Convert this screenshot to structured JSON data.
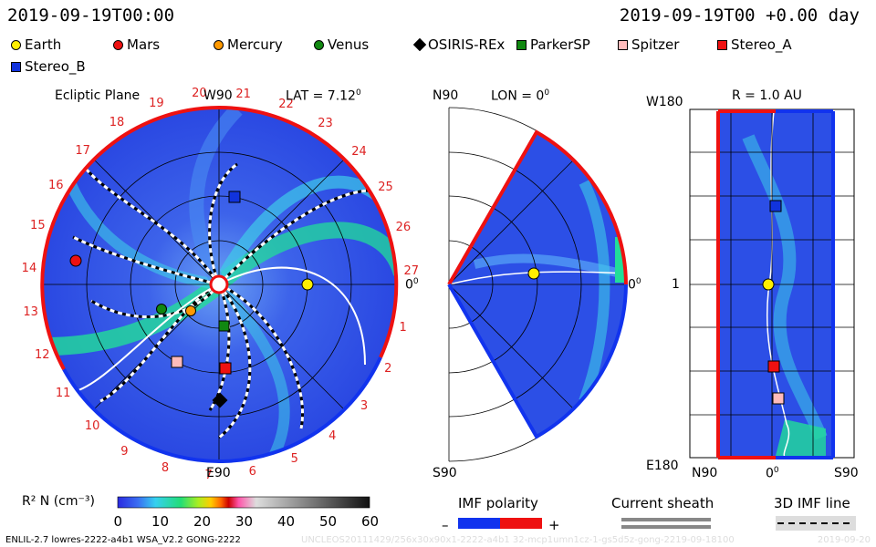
{
  "header": {
    "date_left": "2019-09-19T00:00",
    "date_right": "2019-09-19T00 +0.00 day"
  },
  "legend": [
    {
      "name": "Earth",
      "shape": "circle",
      "color": "#ffee00"
    },
    {
      "name": "Mars",
      "shape": "circle",
      "color": "#ee1111"
    },
    {
      "name": "Mercury",
      "shape": "circle",
      "color": "#ff9900"
    },
    {
      "name": "Venus",
      "shape": "circle",
      "color": "#118811"
    },
    {
      "name": "OSIRIS-REx",
      "shape": "diamond",
      "color": "#000000"
    },
    {
      "name": "ParkerSP",
      "shape": "square",
      "color": "#118811"
    },
    {
      "name": "Spitzer",
      "shape": "square",
      "color": "#ffbbbb"
    },
    {
      "name": "Stereo_A",
      "shape": "square",
      "color": "#ee1111"
    },
    {
      "name": "Stereo_B",
      "shape": "square",
      "color": "#1133dd"
    }
  ],
  "panels": {
    "ecliptic": {
      "title": "Ecliptic Plane",
      "top_label": "W90",
      "bottom_label": "E90",
      "right_label": "0",
      "lat": "LAT = 7.12",
      "deg": "0",
      "rotation_numbers": [
        "1",
        "2",
        "3",
        "4",
        "5",
        "6",
        "7",
        "8",
        "9",
        "10",
        "11",
        "12",
        "13",
        "14",
        "15",
        "16",
        "17",
        "18",
        "19",
        "20",
        "21",
        "22",
        "23",
        "24",
        "25",
        "26",
        "27"
      ]
    },
    "meridional": {
      "lon": "LON = 0",
      "deg": "0",
      "top_label": "N90",
      "bottom_label": "S90",
      "right_label": "0"
    },
    "radial": {
      "title": "R = 1.0 AU",
      "top_left": "W180",
      "mid_left": "1",
      "bottom_left": "E180",
      "x_labels": [
        "N90",
        "0",
        "S90"
      ]
    }
  },
  "colorbar": {
    "label": "R² N (cm⁻³)",
    "ticks": [
      "0",
      "10",
      "20",
      "30",
      "40",
      "50",
      "60"
    ]
  },
  "keys": {
    "imf_title": "IMF polarity",
    "imf_minus": "–",
    "imf_plus": "+",
    "sheath_title": "Current sheath",
    "line_title": "3D IMF line"
  },
  "footer": {
    "left": "ENLIL-2.7 lowres-2222-a4b1 WSA_V2.2 GONG-2222",
    "middle": "UNCLEOS20111429/256x30x90x1-2222-a4b1 32-mcp1umn1cz-1-gs5d5z-gong-2219-09-18100",
    "right": "2019-09-20"
  },
  "colors": {
    "bg_blue": "#2c4fe6",
    "light_blue": "#4a8cf2",
    "cyan": "#3ecbe8",
    "green": "#22dd99",
    "neg_polarity": "#1133ee",
    "pos_polarity": "#ee1111"
  }
}
